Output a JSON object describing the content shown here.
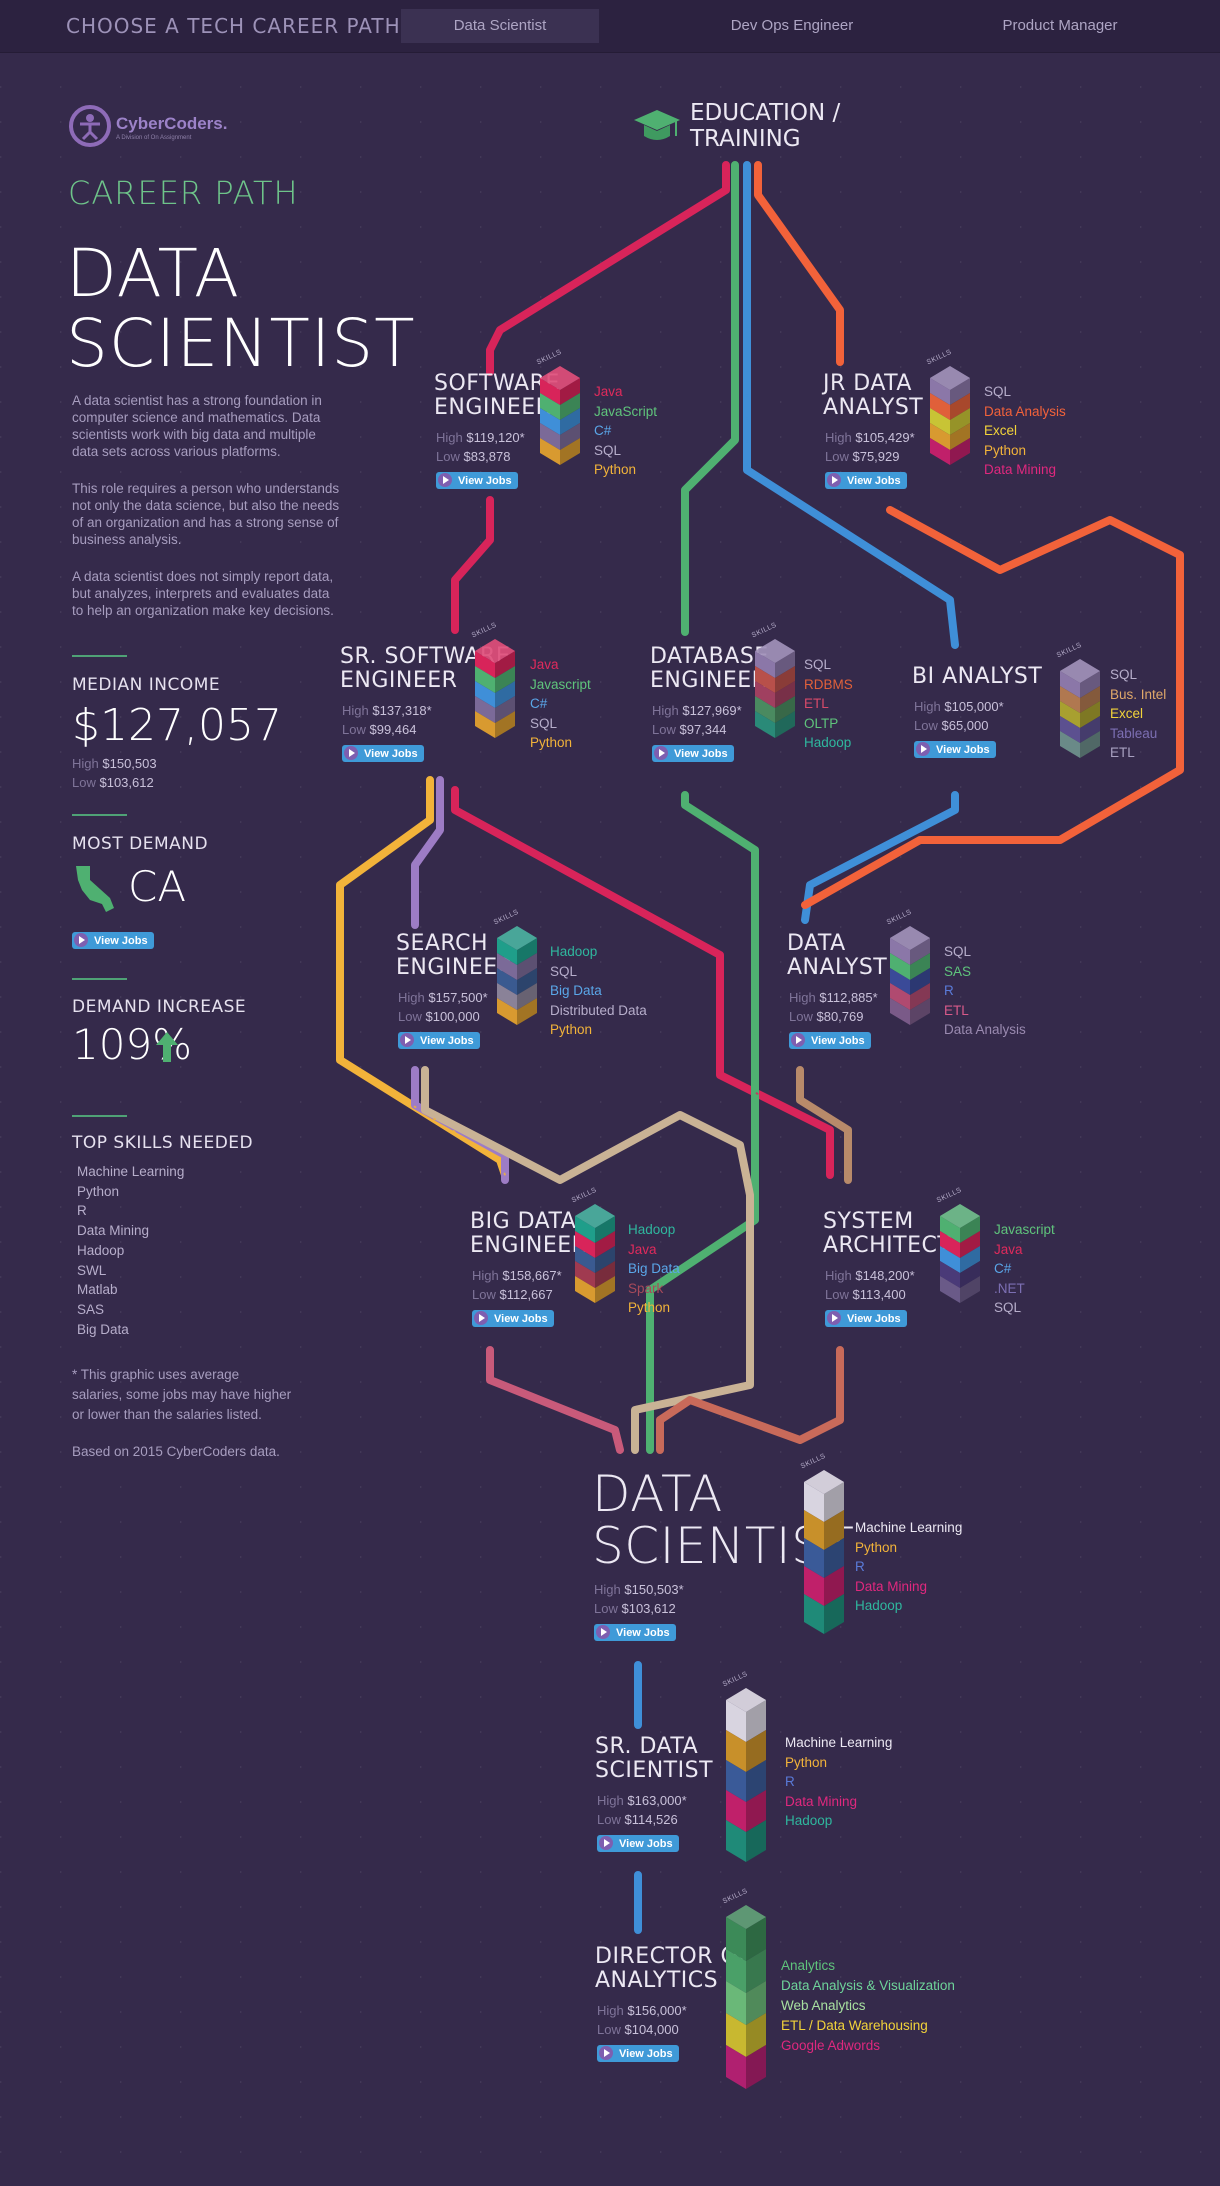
{
  "nav": {
    "title": "CHOOSE A TECH CAREER PATH",
    "tabs": [
      {
        "label": "Data Scientist",
        "active": true
      },
      {
        "label": "Dev Ops Engineer",
        "active": false
      },
      {
        "label": "Product Manager",
        "active": false
      }
    ]
  },
  "brand": {
    "name": "CyberCoders.",
    "tagline": "A Division of On Assignment"
  },
  "sidebar": {
    "kicker": "CAREER PATH",
    "title_line1": "DATA",
    "title_line2": "SCIENTIST",
    "para1": "A data scientist has a strong foundation in computer science and mathematics. Data scientists work with big data and multiple data sets across various platforms.",
    "para2": "This role requires a person who understands not only the data science, but also the needs of an organization and has a strong sense of business analysis.",
    "para3": "A data scientist does not simply report data, but analyzes, interprets and evaluates data to help an organization make key decisions.",
    "median_heading": "MEDIAN INCOME",
    "median_value": "$127,057",
    "median_high_label": "High",
    "median_high": "$150,503",
    "median_low_label": "Low",
    "median_low": "$103,612",
    "demand_heading": "MOST DEMAND",
    "demand_state": "CA",
    "demand_button": "View Jobs",
    "increase_heading": "DEMAND INCREASE",
    "increase_value": "109%",
    "skills_heading": "TOP SKILLS NEEDED",
    "skills": [
      "Machine Learning",
      "Python",
      "R",
      "Data Mining",
      "Hadoop",
      "SWL",
      "Matlab",
      "SAS",
      "Big Data"
    ],
    "footnote": "* This graphic uses average salaries, some jobs may have higher or lower than the salaries listed.",
    "source": "Based on 2015 CyberCoders data."
  },
  "education": {
    "line1": "EDUCATION /",
    "line2": "TRAINING"
  },
  "labels": {
    "high": "High",
    "low": "Low",
    "view_jobs": "View Jobs",
    "skills": "SKILLS"
  },
  "colors": {
    "red": "#d8245a",
    "green": "#4fb071",
    "blue": "#3f8fd8",
    "orange": "#f2623a",
    "yellow": "#f2b33a",
    "lavender": "#9d7cc5",
    "tan": "#c9b295",
    "teal": "#1f9e8a",
    "brown": "#b88a6a"
  },
  "jobs": [
    {
      "id": "software-engineer",
      "title1": "SOFTWARE",
      "title2": "ENGINEER",
      "high": "$119,120",
      "low": "$83,878",
      "skills": [
        {
          "t": "Java",
          "c": "#e02a5c"
        },
        {
          "t": "JavaScript",
          "c": "#5fc47c"
        },
        {
          "t": "C#",
          "c": "#5aa6e8"
        },
        {
          "t": "SQL",
          "c": "#b7aecb"
        },
        {
          "t": "Python",
          "c": "#f2b33a"
        }
      ],
      "stack": [
        "#d8245a",
        "#4fb071",
        "#3f8fd8",
        "#7b6a98",
        "#d89a30"
      ]
    },
    {
      "id": "jr-data-analyst",
      "title1": "JR DATA",
      "title2": "ANALYST",
      "high": "$105,429",
      "low": "$75,929",
      "skills": [
        {
          "t": "SQL",
          "c": "#b7aecb"
        },
        {
          "t": "Data Analysis",
          "c": "#f2623a"
        },
        {
          "t": "Excel",
          "c": "#f2d33a"
        },
        {
          "t": "Python",
          "c": "#f2b33a"
        },
        {
          "t": "Data Mining",
          "c": "#e0287e"
        }
      ],
      "stack": [
        "#8b77a8",
        "#e0603a",
        "#c8c435",
        "#d89a30",
        "#c0206a"
      ]
    },
    {
      "id": "sr-software-engineer",
      "title1": "SR. SOFTWARE",
      "title2": "ENGINEER",
      "high": "$137,318",
      "low": "$99,464",
      "skills": [
        {
          "t": "Java",
          "c": "#e02a5c"
        },
        {
          "t": "Javascript",
          "c": "#5fc47c"
        },
        {
          "t": "C#",
          "c": "#5aa6e8"
        },
        {
          "t": "SQL",
          "c": "#b7aecb"
        },
        {
          "t": "Python",
          "c": "#f2b33a"
        }
      ],
      "stack": [
        "#d8245a",
        "#4fb071",
        "#3f8fd8",
        "#7b6a98",
        "#d89a30"
      ]
    },
    {
      "id": "database-engineer",
      "title1": "DATABASE",
      "title2": "ENGINEER",
      "high": "$127,969",
      "low": "$97,344",
      "skills": [
        {
          "t": "SQL",
          "c": "#b7aecb"
        },
        {
          "t": "RDBMS",
          "c": "#e0603a"
        },
        {
          "t": "ETL",
          "c": "#d84a6a"
        },
        {
          "t": "OLTP",
          "c": "#5fc47c"
        },
        {
          "t": "Hadoop",
          "c": "#2fb79e"
        }
      ],
      "stack": [
        "#8b77a8",
        "#b8504a",
        "#a04060",
        "#4a8a60",
        "#2a8a78"
      ]
    },
    {
      "id": "bi-analyst",
      "title1": "BI ANALYST",
      "title2": "",
      "high": "$105,000",
      "low": "$65,000",
      "skills": [
        {
          "t": "SQL",
          "c": "#b7aecb"
        },
        {
          "t": "Bus. Intel",
          "c": "#e0a86a"
        },
        {
          "t": "Excel",
          "c": "#f2d33a"
        },
        {
          "t": "Tableau",
          "c": "#7c6fb3"
        },
        {
          "t": "ETL",
          "c": "#a8a0c0"
        }
      ],
      "stack": [
        "#8b77a8",
        "#b07850",
        "#a8a030",
        "#5c5090",
        "#6a8a88"
      ]
    },
    {
      "id": "search-engineer",
      "title1": "SEARCH",
      "title2": "ENGINEER",
      "high": "$157,500",
      "low": "$100,000",
      "skills": [
        {
          "t": "Hadoop",
          "c": "#2fb79e"
        },
        {
          "t": "SQL",
          "c": "#b7aecb"
        },
        {
          "t": "Big Data",
          "c": "#5aa6e8"
        },
        {
          "t": "Distributed Data",
          "c": "#b7aecb"
        },
        {
          "t": "Python",
          "c": "#f2b33a"
        }
      ],
      "stack": [
        "#1f9e8a",
        "#7b6a98",
        "#3a5a90",
        "#8a8298",
        "#d89a30"
      ]
    },
    {
      "id": "data-analyst",
      "title1": "DATA",
      "title2": "ANALYST",
      "high": "$112,885",
      "low": "$80,769",
      "skills": [
        {
          "t": "SQL",
          "c": "#b7aecb"
        },
        {
          "t": "SAS",
          "c": "#5fc47c"
        },
        {
          "t": "R",
          "c": "#5a7ad8"
        },
        {
          "t": "ETL",
          "c": "#d85a8a"
        },
        {
          "t": "Data Analysis",
          "c": "#9a8ab0"
        }
      ],
      "stack": [
        "#8b77a8",
        "#4fb071",
        "#3a4a98",
        "#b04a70",
        "#7a5a88"
      ]
    },
    {
      "id": "big-data-engineer",
      "title1": "BIG DATA",
      "title2": "ENGINEER",
      "high": "$158,667",
      "low": "$112,667",
      "skills": [
        {
          "t": "Hadoop",
          "c": "#2fb79e"
        },
        {
          "t": "Java",
          "c": "#e02a5c"
        },
        {
          "t": "Big Data",
          "c": "#5aa6e8"
        },
        {
          "t": "Spark",
          "c": "#a84a5a"
        },
        {
          "t": "Python",
          "c": "#f2b33a"
        }
      ],
      "stack": [
        "#1f9e8a",
        "#d8245a",
        "#3a5a90",
        "#a03a50",
        "#d89a30"
      ]
    },
    {
      "id": "system-architect",
      "title1": "SYSTEM",
      "title2": "ARCHITECT",
      "high": "$148,200",
      "low": "$113,400",
      "skills": [
        {
          "t": "Javascript",
          "c": "#5fc47c"
        },
        {
          "t": "Java",
          "c": "#e02a5c"
        },
        {
          "t": "C#",
          "c": "#5aa6e8"
        },
        {
          "t": ".NET",
          "c": "#7c6fb3"
        },
        {
          "t": "SQL",
          "c": "#b7aecb"
        }
      ],
      "stack": [
        "#4fb071",
        "#d8245a",
        "#3f8fd8",
        "#4a3a78",
        "#6a5a88"
      ]
    }
  ],
  "target": {
    "title1": "DATA",
    "title2": "SCIENTIST",
    "high": "$150,503",
    "low": "$103,612",
    "skills": [
      {
        "t": "Machine Learning",
        "c": "#ece8f3"
      },
      {
        "t": "Python",
        "c": "#f2b33a"
      },
      {
        "t": "R",
        "c": "#5a7ad8"
      },
      {
        "t": "Data Mining",
        "c": "#e0287e"
      },
      {
        "t": "Hadoop",
        "c": "#2fb79e"
      }
    ],
    "stack": [
      "#d8d4e0",
      "#c8902a",
      "#3a5a98",
      "#c0206a",
      "#1f8a78"
    ]
  },
  "senior": [
    {
      "id": "sr-data-scientist",
      "title1": "SR. DATA",
      "title2": "SCIENTIST",
      "high": "$163,000",
      "low": "$114,526",
      "skills": [
        {
          "t": "Machine Learning",
          "c": "#ece8f3"
        },
        {
          "t": "Python",
          "c": "#f2b33a"
        },
        {
          "t": "R",
          "c": "#5a7ad8"
        },
        {
          "t": "Data Mining",
          "c": "#e0287e"
        },
        {
          "t": "Hadoop",
          "c": "#2fb79e"
        }
      ],
      "stack": [
        "#d8d4e0",
        "#c8902a",
        "#3a5a98",
        "#c0206a",
        "#1f8a78"
      ]
    },
    {
      "id": "director-of-analytics",
      "title1": "DIRECTOR OF",
      "title2": "ANALYTICS",
      "high": "$156,000",
      "low": "$104,000",
      "skills": [
        {
          "t": "Analytics",
          "c": "#5fc47c"
        },
        {
          "t": "Data Analysis & Visualization",
          "c": "#6ed49a"
        },
        {
          "t": "Web Analytics",
          "c": "#a8e0a0"
        },
        {
          "t": "ETL / Data Warehousing",
          "c": "#f2d33a"
        },
        {
          "t": "Google Adwords",
          "c": "#e0287e"
        }
      ],
      "stack": [
        "#3c8a58",
        "#4aa068",
        "#6ab878",
        "#c8b830",
        "#b02070"
      ]
    }
  ]
}
